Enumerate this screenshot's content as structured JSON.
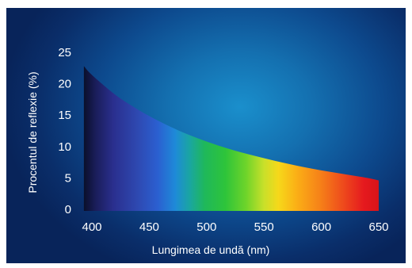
{
  "chart_data": {
    "type": "area",
    "title": "",
    "xlabel": "Lungimea de undă (nm)",
    "ylabel": "Procentul de reflexie (%)",
    "xlim": [
      400,
      650
    ],
    "ylim": [
      0,
      25
    ],
    "xticks": [
      400,
      450,
      500,
      550,
      600,
      650
    ],
    "yticks": [
      0,
      5,
      10,
      15,
      20,
      25
    ],
    "grid": false,
    "legend": "none",
    "fill": "visible spectrum gradient (violet to red)",
    "series": [
      {
        "x": [
          393,
          400,
          420,
          440,
          460,
          480,
          500,
          520,
          540,
          560,
          580,
          600,
          620,
          640,
          650
        ],
        "y": [
          22.8,
          21.4,
          18.3,
          15.9,
          13.9,
          12.2,
          10.8,
          9.6,
          8.6,
          7.7,
          6.9,
          6.2,
          5.6,
          5.0,
          4.6
        ]
      }
    ]
  }
}
